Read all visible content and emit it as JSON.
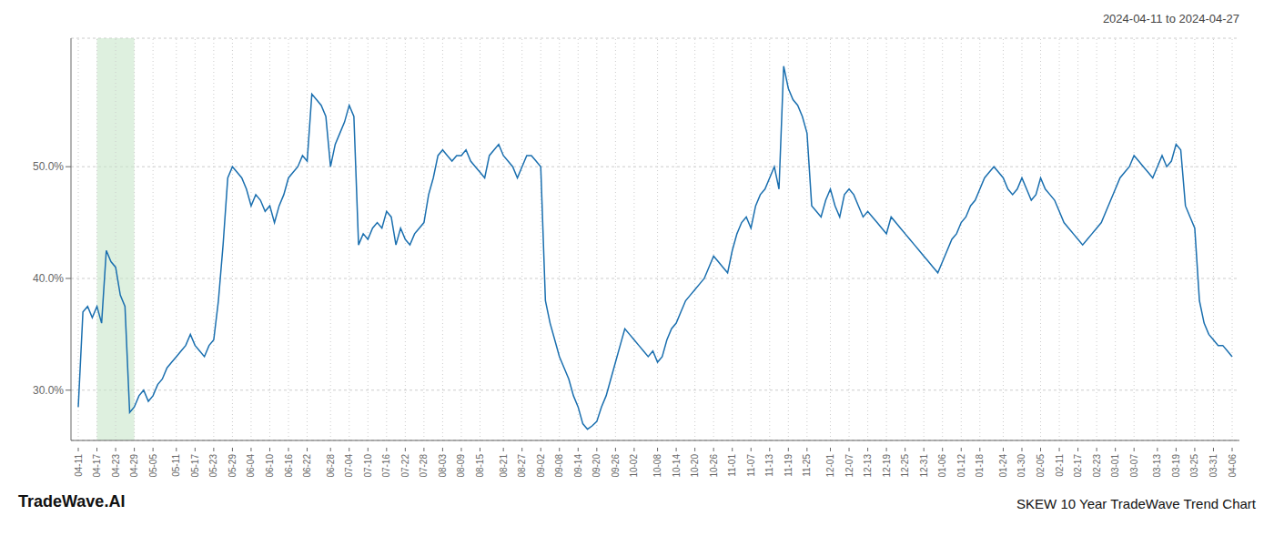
{
  "chart_data": {
    "type": "line",
    "title": "SKEW 10 Year TradeWave Trend Chart",
    "subtitle": "2024-04-11 to 2024-04-27",
    "annotations": [
      "TradeWave.AI"
    ],
    "color": "#1a6faf",
    "ylim": [
      0.255,
      0.615
    ],
    "yticks": [
      {
        "value": 0.3,
        "label": "30.0%"
      },
      {
        "value": 0.4,
        "label": "40.0%"
      },
      {
        "value": 0.5,
        "label": "50.0%"
      }
    ],
    "grid": true,
    "highlight": {
      "start": "04-17",
      "end": "04-29",
      "color": "#c8e6c9"
    },
    "categories": [
      "04-11",
      null,
      null,
      null,
      "04-17",
      null,
      null,
      null,
      "04-23",
      null,
      null,
      null,
      "04-29",
      null,
      null,
      null,
      "05-05",
      null,
      null,
      null,
      null,
      "05-11",
      null,
      null,
      null,
      "05-17",
      null,
      null,
      null,
      "05-23",
      null,
      null,
      null,
      "05-29",
      null,
      null,
      null,
      "06-04",
      null,
      null,
      null,
      "06-10",
      null,
      null,
      null,
      "06-16",
      null,
      null,
      null,
      "06-22",
      null,
      null,
      null,
      null,
      "06-28",
      null,
      null,
      null,
      "07-04",
      null,
      null,
      null,
      "07-10",
      null,
      null,
      null,
      "07-16",
      null,
      null,
      null,
      "07-22",
      null,
      null,
      null,
      "07-28",
      null,
      null,
      null,
      "08-03",
      null,
      null,
      null,
      "08-09",
      null,
      null,
      null,
      "08-15",
      null,
      null,
      null,
      null,
      "08-21",
      null,
      null,
      null,
      "08-27",
      null,
      null,
      null,
      "09-02",
      null,
      null,
      null,
      "09-08",
      null,
      null,
      null,
      "09-14",
      null,
      null,
      null,
      "09-20",
      null,
      null,
      null,
      "09-26",
      null,
      null,
      null,
      "10-02",
      null,
      null,
      null,
      null,
      "10-08",
      null,
      null,
      null,
      "10-14",
      null,
      null,
      null,
      "10-20",
      null,
      null,
      null,
      "10-26",
      null,
      null,
      null,
      "11-01",
      null,
      null,
      null,
      "11-07",
      null,
      null,
      null,
      "11-13",
      null,
      null,
      null,
      "11-19",
      null,
      null,
      null,
      "11-25",
      null,
      null,
      null,
      null,
      "12-01",
      null,
      null,
      null,
      "12-07",
      null,
      null,
      null,
      "12-13",
      null,
      null,
      null,
      "12-19",
      null,
      null,
      null,
      "12-25",
      null,
      null,
      null,
      "12-31",
      null,
      null,
      null,
      "01-06",
      null,
      null,
      null,
      "01-12",
      null,
      null,
      null,
      "01-18",
      null,
      null,
      null,
      null,
      "01-24",
      null,
      null,
      null,
      "01-30",
      null,
      null,
      null,
      "02-05",
      null,
      null,
      null,
      "02-11",
      null,
      null,
      null,
      "02-17",
      null,
      null,
      null,
      "02-23",
      null,
      null,
      null,
      "03-01",
      null,
      null,
      null,
      "03-07",
      null,
      null,
      null,
      null,
      "03-13",
      null,
      null,
      null,
      "03-19",
      null,
      null,
      null,
      "03-25",
      null,
      null,
      null,
      "03-31",
      null,
      null,
      null,
      "04-06"
    ],
    "values": [
      0.285,
      0.37,
      0.375,
      0.365,
      0.375,
      0.36,
      0.425,
      0.415,
      0.41,
      0.385,
      0.375,
      0.28,
      0.285,
      0.295,
      0.3,
      0.29,
      0.295,
      0.305,
      0.31,
      0.32,
      0.325,
      0.33,
      0.335,
      0.34,
      0.35,
      0.34,
      0.335,
      0.33,
      0.34,
      0.345,
      0.38,
      0.43,
      0.49,
      0.5,
      0.495,
      0.49,
      0.48,
      0.465,
      0.475,
      0.47,
      0.46,
      0.465,
      0.45,
      0.465,
      0.475,
      0.49,
      0.495,
      0.5,
      0.51,
      0.505,
      0.565,
      0.56,
      0.555,
      0.545,
      0.5,
      0.52,
      0.53,
      0.54,
      0.555,
      0.545,
      0.43,
      0.44,
      0.435,
      0.445,
      0.45,
      0.445,
      0.46,
      0.455,
      0.43,
      0.445,
      0.435,
      0.43,
      0.44,
      0.445,
      0.45,
      0.475,
      0.49,
      0.51,
      0.515,
      0.51,
      0.505,
      0.51,
      0.51,
      0.515,
      0.505,
      0.5,
      0.495,
      0.49,
      0.51,
      0.515,
      0.52,
      0.51,
      0.505,
      0.5,
      0.49,
      0.5,
      0.51,
      0.51,
      0.505,
      0.5,
      0.38,
      0.36,
      0.345,
      0.33,
      0.32,
      0.31,
      0.295,
      0.285,
      0.27,
      0.265,
      0.268,
      0.272,
      0.285,
      0.295,
      0.31,
      0.325,
      0.34,
      0.355,
      0.35,
      0.345,
      0.34,
      0.335,
      0.33,
      0.335,
      0.325,
      0.33,
      0.345,
      0.355,
      0.36,
      0.37,
      0.38,
      0.385,
      0.39,
      0.395,
      0.4,
      0.41,
      0.42,
      0.415,
      0.41,
      0.405,
      0.425,
      0.44,
      0.45,
      0.455,
      0.445,
      0.465,
      0.475,
      0.48,
      0.49,
      0.5,
      0.48,
      0.59,
      0.57,
      0.56,
      0.555,
      0.545,
      0.53,
      0.465,
      0.46,
      0.455,
      0.47,
      0.48,
      0.465,
      0.455,
      0.475,
      0.48,
      0.475,
      0.465,
      0.455,
      0.46,
      0.455,
      0.45,
      0.445,
      0.44,
      0.455,
      0.45,
      0.445,
      0.44,
      0.435,
      0.43,
      0.425,
      0.42,
      0.415,
      0.41,
      0.405,
      0.415,
      0.425,
      0.435,
      0.44,
      0.45,
      0.455,
      0.465,
      0.47,
      0.48,
      0.49,
      0.495,
      0.5,
      0.495,
      0.49,
      0.48,
      0.475,
      0.48,
      0.49,
      0.48,
      0.47,
      0.475,
      0.49,
      0.48,
      0.475,
      0.47,
      0.46,
      0.45,
      0.445,
      0.44,
      0.435,
      0.43,
      0.435,
      0.44,
      0.445,
      0.45,
      0.46,
      0.47,
      0.48,
      0.49,
      0.495,
      0.5,
      0.51,
      0.505,
      0.5,
      0.495,
      0.49,
      0.5,
      0.51,
      0.5,
      0.505,
      0.52,
      0.515,
      0.465,
      0.455,
      0.445,
      0.38,
      0.36,
      0.35,
      0.345,
      0.34,
      0.34,
      0.335,
      0.33
    ]
  }
}
